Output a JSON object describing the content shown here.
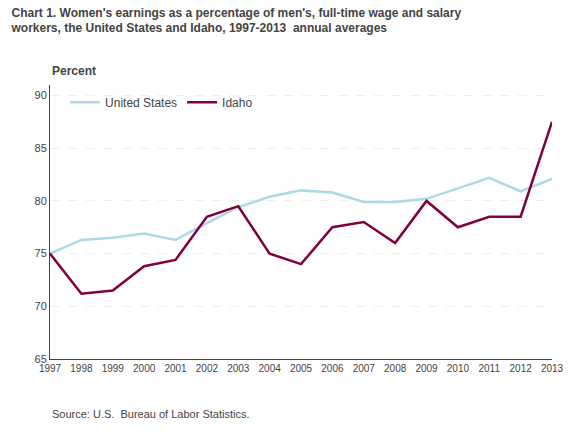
{
  "chart_data": {
    "type": "line",
    "title": "Chart 1. Women's earnings as a percentage of men's, full-time wage and salary",
    "subtitle": "workers, the United States and Idaho, 1997-2013  annual averages",
    "ylabel": "Percent",
    "annotations": [
      "Source: U.S.  Bureau of Labor Statistics."
    ],
    "x": [
      1997,
      1998,
      1999,
      2000,
      2001,
      2002,
      2003,
      2004,
      2005,
      2006,
      2007,
      2008,
      2009,
      2010,
      2011,
      2012,
      2013
    ],
    "series": [
      {
        "name": "United States",
        "color": "#add8e6",
        "values": [
          75.0,
          76.3,
          76.5,
          76.9,
          76.3,
          77.9,
          79.4,
          80.4,
          81.0,
          80.8,
          79.9,
          79.9,
          80.2,
          81.2,
          82.2,
          80.9,
          82.1
        ]
      },
      {
        "name": "Idaho",
        "color": "#800040",
        "values": [
          75.0,
          71.2,
          71.5,
          73.8,
          74.4,
          78.5,
          79.5,
          75.0,
          74.0,
          77.5,
          78.0,
          76.0,
          80.0,
          77.5,
          78.5,
          78.5,
          87.5
        ]
      }
    ],
    "xlim": [
      1997,
      2013
    ],
    "xticks": [
      1997,
      1998,
      1999,
      2000,
      2001,
      2002,
      2003,
      2004,
      2005,
      2006,
      2007,
      2008,
      2009,
      2010,
      2011,
      2012,
      2013
    ],
    "ylim": [
      65,
      91
    ],
    "yticks": [
      65,
      70,
      75,
      80,
      85,
      90
    ],
    "grid": true,
    "legend": "upper left"
  }
}
